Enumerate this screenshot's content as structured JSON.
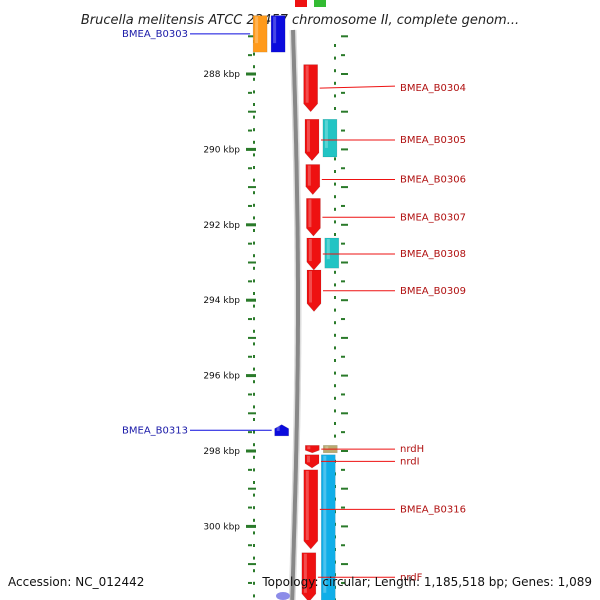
{
  "title": "Brucella melitensis ATCC 23457 chromosome II, complete genom...",
  "footer": {
    "accession": "Accession: NC_012442",
    "topology": "Topology: circular; Length: 1,185,518 bp; Genes: 1,089"
  },
  "colors": {
    "red_gene": "#ee1111",
    "blue_gene": "#0b0bdd",
    "cyan_gene": "#22c4c4",
    "sky_gene": "#10aee8",
    "orange_gene": "#ff9a1a",
    "tan_gene": "#b8aa70",
    "green_gene": "#33bb33",
    "tick": "#2a7a2a",
    "backbone": "#888888"
  },
  "ticks": [
    {
      "label": "288 kbp",
      "y": 288
    },
    {
      "label": "290 kbp",
      "y": 290
    },
    {
      "label": "292 kbp",
      "y": 292
    },
    {
      "label": "294 kbp",
      "y": 294
    },
    {
      "label": "296 kbp",
      "y": 296
    },
    {
      "label": "298 kbp",
      "y": 298
    },
    {
      "label": "300 kbp",
      "y": 300
    }
  ],
  "genes_left": [
    {
      "name": "BMEA_B0303",
      "color": "orange_gene",
      "start": 286.45,
      "end": 287.42,
      "track": 0
    },
    {
      "name": "",
      "color": "blue_gene",
      "start": 286.45,
      "end": 287.42,
      "track": 1
    },
    {
      "name": "BMEA_B0313",
      "color": "blue_gene",
      "start": 297.3,
      "end": 297.6,
      "track": 1,
      "arrow": true
    }
  ],
  "genes_right": [
    {
      "name": "BMEA_B0304",
      "color": "red_gene",
      "start": 287.75,
      "end": 289.0,
      "track": 0
    },
    {
      "name": "BMEA_B0305",
      "color": "red_gene",
      "start": 289.2,
      "end": 290.3,
      "track": 0
    },
    {
      "name": "",
      "color": "cyan_gene",
      "start": 289.2,
      "end": 290.2,
      "track": 1
    },
    {
      "name": "BMEA_B0306",
      "color": "red_gene",
      "start": 290.4,
      "end": 291.2,
      "track": 0
    },
    {
      "name": "BMEA_B0307",
      "color": "red_gene",
      "start": 291.3,
      "end": 292.3,
      "track": 0
    },
    {
      "name": "BMEA_B0308",
      "color": "red_gene",
      "start": 292.35,
      "end": 293.2,
      "track": 0
    },
    {
      "name": "",
      "color": "cyan_gene",
      "start": 292.35,
      "end": 293.15,
      "track": 1
    },
    {
      "name": "BMEA_B0309",
      "color": "red_gene",
      "start": 293.2,
      "end": 294.3,
      "track": 0
    },
    {
      "name": "nrdH",
      "color": "red_gene",
      "start": 297.85,
      "end": 298.05,
      "track": 0
    },
    {
      "name": "",
      "color": "tan_gene",
      "start": 297.85,
      "end": 298.05,
      "track": 1
    },
    {
      "name": "nrdI",
      "color": "red_gene",
      "start": 298.1,
      "end": 298.45,
      "track": 0
    },
    {
      "name": "BMEA_B0316",
      "color": "red_gene",
      "start": 298.5,
      "end": 300.6,
      "track": 0
    },
    {
      "name": "",
      "color": "sky_gene",
      "start": 298.1,
      "end": 302.0,
      "track": 1
    },
    {
      "name": "nrdF",
      "color": "red_gene",
      "start": 300.7,
      "end": 302.0,
      "track": 0
    }
  ]
}
